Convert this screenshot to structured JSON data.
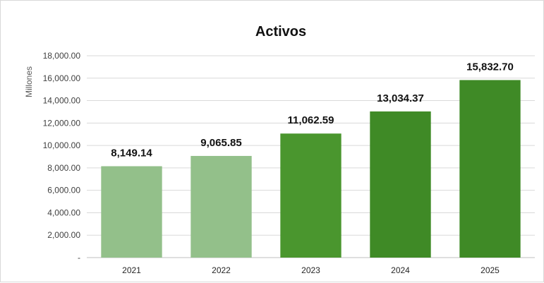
{
  "chart_data": {
    "type": "bar",
    "title": "Activos",
    "ylabel": "Millones",
    "xlabel": "",
    "categories": [
      "2021",
      "2022",
      "2023",
      "2024",
      "2025"
    ],
    "values": [
      8149.14,
      9065.85,
      11062.59,
      13034.37,
      15832.7
    ],
    "data_labels": [
      "8,149.14",
      "9,065.85",
      "11,062.59",
      "13,034.37",
      "15,832.70"
    ],
    "ylim": [
      0,
      18000
    ],
    "yticks": [
      0,
      2000,
      4000,
      6000,
      8000,
      10000,
      12000,
      14000,
      16000,
      18000
    ],
    "ytick_labels": [
      "-",
      "2,000.00",
      "4,000.00",
      "6,000.00",
      "8,000.00",
      "10,000.00",
      "12,000.00",
      "14,000.00",
      "16,000.00",
      "18,000.00"
    ],
    "grid": true,
    "legend": "none",
    "bar_colors": [
      "#93c08a",
      "#93c08a",
      "#4a962e",
      "#3f8a26",
      "#3f8a26"
    ]
  }
}
